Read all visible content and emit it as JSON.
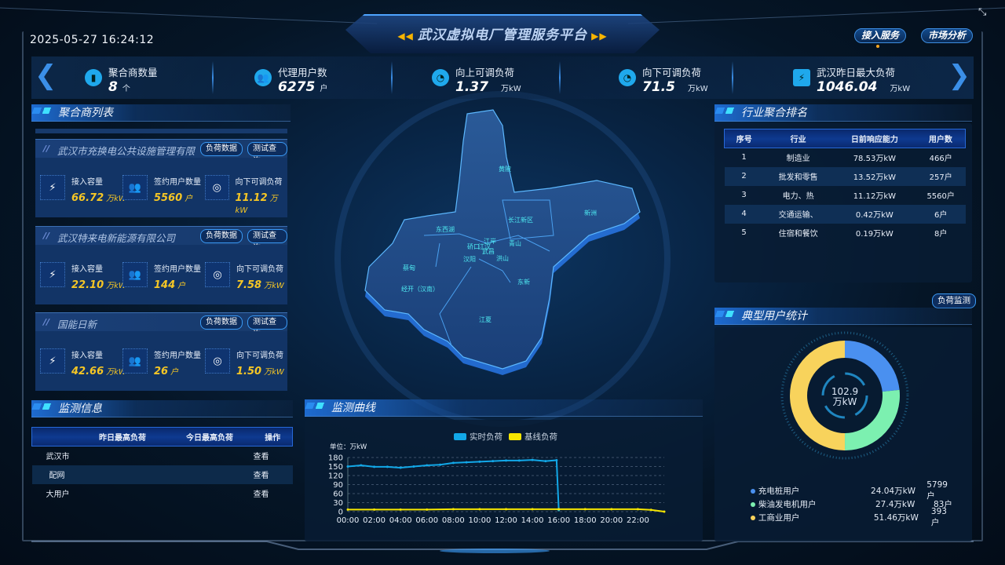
{
  "header": {
    "title": "武汉虚拟电厂管理服务平台",
    "datetime": "2025-05-27 16:24:12",
    "buttons": [
      "接入服务",
      "市场分析"
    ],
    "collapse_icon": "collapse-icon"
  },
  "stats": [
    {
      "label": "聚合商数量",
      "value": "8",
      "unit": "个",
      "icon": "power-plant-icon"
    },
    {
      "label": "代理用户数",
      "value": "6275",
      "unit": "户",
      "icon": "users-icon"
    },
    {
      "label": "向上可调负荷",
      "value": "1.37",
      "unit": "万kW",
      "icon": "gauge-icon"
    },
    {
      "label": "向下可调负荷",
      "value": "71.5",
      "unit": "万kW",
      "icon": "gauge-icon"
    },
    {
      "label": "武汉昨日最大负荷",
      "value": "1046.04",
      "unit": "万kW",
      "icon": "battery-icon"
    }
  ],
  "aggregators": {
    "title": "聚合商列表",
    "btn_load": "负荷数据",
    "btn_test": "测试查询",
    "metric_labels": [
      "接入容量",
      "签约用户数量",
      "向下可调负荷"
    ],
    "units": [
      "万kW",
      "户",
      "万kW"
    ],
    "items": [
      {
        "name": "武汉市充换电公共设施管理有限",
        "values": [
          "66.72",
          "5560",
          "11.12"
        ]
      },
      {
        "name": "武汉特来电新能源有限公司",
        "values": [
          "22.10",
          "144",
          "7.58"
        ]
      },
      {
        "name": "国能日新",
        "values": [
          "42.66",
          "26",
          "1.50"
        ]
      }
    ]
  },
  "monitor_info": {
    "title": "监测信息",
    "columns": [
      "",
      "昨日最高负荷",
      "今日最高负荷",
      "操作"
    ],
    "rows": [
      {
        "name": "武汉市",
        "action": "查看"
      },
      {
        "name": "配网",
        "action": "查看"
      },
      {
        "name": "大用户",
        "action": "查看"
      }
    ]
  },
  "map": {
    "labels": [
      "黄陂",
      "新洲",
      "长江新区",
      "东西湖",
      "江岸",
      "硚口",
      "江汉",
      "青山",
      "武昌",
      "汉阳",
      "洪山",
      "蔡甸",
      "东新",
      "经开（汉南）",
      "江夏"
    ]
  },
  "industry": {
    "title": "行业聚合排名",
    "columns": [
      "序号",
      "行业",
      "日前响应能力",
      "用户数"
    ],
    "rows": [
      [
        "1",
        "制造业",
        "78.53万kW",
        "466户"
      ],
      [
        "2",
        "批发和零售",
        "13.52万kW",
        "257户"
      ],
      [
        "3",
        "电力、热",
        "11.12万kW",
        "5560户"
      ],
      [
        "4",
        "交通运输、",
        "0.42万kW",
        "6户"
      ],
      [
        "5",
        "住宿和餐饮",
        "0.19万kW",
        "8户"
      ]
    ]
  },
  "typical": {
    "title": "典型用户统计",
    "button": "负荷监测",
    "total": "102.9",
    "total_unit": "万kW",
    "items": [
      {
        "name": "充电桩用户",
        "value": 24.04,
        "value_text": "24.04万kW",
        "count": "5799户",
        "color": "#4a90f0"
      },
      {
        "name": "柴油发电机用户",
        "value": 27.4,
        "value_text": "27.4万kW",
        "count": "83户",
        "color": "#7cf0b0"
      },
      {
        "name": "工商业用户",
        "value": 51.46,
        "value_text": "51.46万kW",
        "count": "393户",
        "color": "#f8d35c"
      }
    ]
  },
  "curve": {
    "title": "监测曲线"
  },
  "chart_data": {
    "type": "line",
    "unit_label": "单位：万kW",
    "ylim": [
      0,
      180
    ],
    "yticks": [
      0,
      30,
      60,
      90,
      120,
      150,
      180
    ],
    "xticks": [
      "00:00",
      "02:00",
      "04:00",
      "06:00",
      "08:00",
      "10:00",
      "12:00",
      "14:00",
      "16:00",
      "18:00",
      "20:00",
      "22:00"
    ],
    "grid": true,
    "legend": "top",
    "series": [
      {
        "name": "实时负荷",
        "color": "#12a8e8",
        "x": [
          "00:00",
          "01:00",
          "02:00",
          "03:00",
          "04:00",
          "05:00",
          "06:00",
          "07:00",
          "08:00",
          "09:00",
          "10:00",
          "11:00",
          "12:00",
          "13:00",
          "14:00",
          "15:00",
          "15:50",
          "16:00"
        ],
        "y": [
          150,
          154,
          149,
          149,
          146,
          150,
          154,
          156,
          162,
          164,
          166,
          168,
          170,
          170,
          172,
          168,
          171,
          5
        ]
      },
      {
        "name": "基线负荷",
        "color": "#f6e600",
        "x": [
          "00:00",
          "02:00",
          "04:00",
          "06:00",
          "08:00",
          "10:00",
          "12:00",
          "14:00",
          "16:00",
          "18:00",
          "20:00",
          "22:00",
          "23:00",
          "24:00"
        ],
        "y": [
          7,
          7,
          7,
          7,
          8,
          8,
          8,
          8,
          8,
          8,
          8,
          8,
          6,
          0
        ]
      }
    ]
  }
}
